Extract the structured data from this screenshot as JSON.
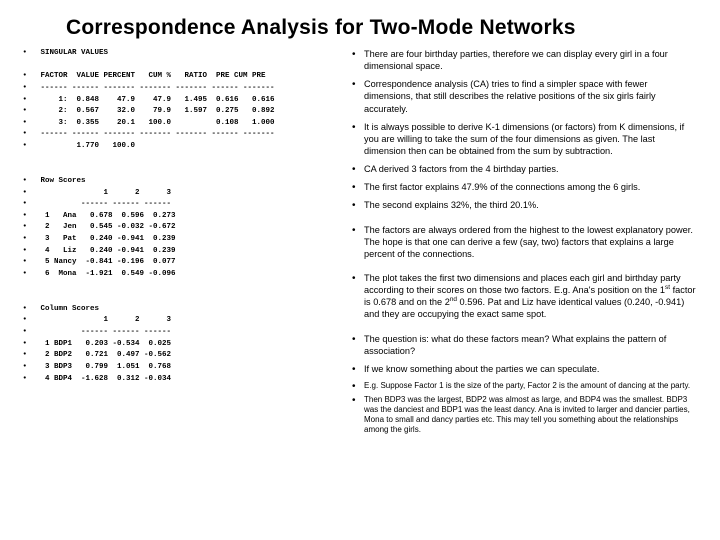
{
  "title": "Correspondence Analysis for Two-Mode Networks",
  "singular": {
    "header": "SINGULAR VALUES",
    "cols": " FACTOR  VALUE PERCENT   CUM %   RATIO  PRE CUM PRE",
    "rule": " ------ ------ ------- ------- ------- ------ -------",
    "r1": "     1:  0.848    47.9    47.9   1.495  0.616   0.616",
    "r2": "     2:  0.567    32.0    79.9   1.597  0.275   0.892",
    "r3": "     3:  0.355    20.1   100.0          0.108   1.000",
    "rule2": " ------ ------ ------- ------- ------- ------ -------",
    "total": "         1.770   100.0"
  },
  "rows": {
    "header": "Row Scores",
    "cols": "               1      2      3",
    "rule": "          ------ ------ ------",
    "r1": "  1   Ana   0.678  0.596  0.273",
    "r2": "  2   Jen   0.545 -0.032 -0.672",
    "r3": "  3   Pat   0.240 -0.941  0.239",
    "r4": "  4   Liz   0.240 -0.941  0.239",
    "r5": "  5 Nancy  -0.841 -0.196  0.077",
    "r6": "  6  Mona  -1.921  0.549 -0.096"
  },
  "colsc": {
    "header": "Column Scores",
    "cols": "               1      2      3",
    "rule": "          ------ ------ ------",
    "r1": "  1 BDP1   0.203 -0.534  0.025",
    "r2": "  2 BDP2   0.721  0.497 -0.562",
    "r3": "  3 BDP3   0.799  1.051  0.768",
    "r4": "  4 BDP4  -1.628  0.312 -0.034"
  },
  "notes": {
    "n1": "There are four birthday parties, therefore we can display every girl in a four dimensional space.",
    "n2": "Correspondence analysis (CA) tries to find a simpler space with fewer dimensions, that still describes the relative positions of the six girls fairly accurately.",
    "n3": "It is always possible to derive K-1 dimensions (or factors) from K dimensions, if you are willing to take the sum of the four dimensions as given. The last dimension then can be obtained from the sum by subtraction.",
    "n4": "CA derived 3 factors from the 4 birthday parties.",
    "n5": "The first factor explains 47.9% of the connections among the 6 girls.",
    "n6": "The second explains 32%, the third 20.1%.",
    "n7": "The factors are always ordered from the highest to the lowest explanatory power. The hope is that one can derive a few (say, two) factors that explains a large percent of the connections.",
    "n8a": "The plot takes the first two dimensions and places each girl and birthday party according to their scores on those two factors. E.g. Ana's position on the 1",
    "n8b": " factor is 0.678 and on the 2",
    "n8c": " 0.596. Pat and Liz have identical values (0.240, -0.941) and they are occupying the exact same spot.",
    "n9": "The question is: what do these factors mean? What explains the pattern of association?",
    "n10": "If we know something about the parties we can speculate.",
    "n11": "E.g. Suppose Factor 1 is the size of the party, Factor 2 is the amount of dancing at the party.",
    "n12": "Then BDP3 was the largest, BDP2 was almost as large, and BDP4 was the smallest. BDP3 was the danciest and BDP1 was the least dancy. Ana is invited to larger and dancier parties, Mona to small and dancy parties etc. This may tell you something about the relationships among the girls."
  },
  "sup1": "st",
  "sup2": "nd"
}
